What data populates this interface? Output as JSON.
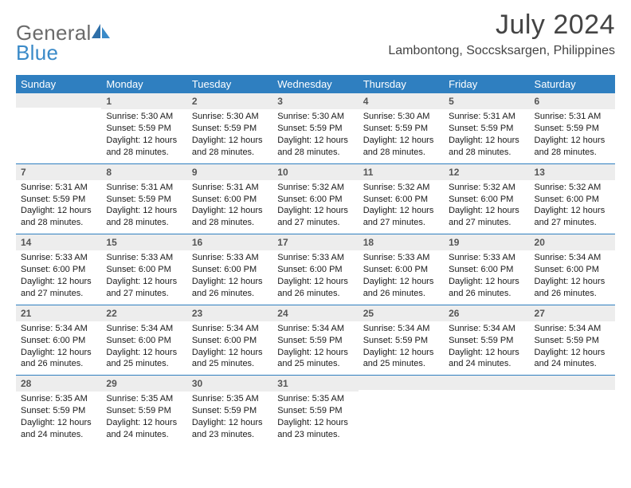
{
  "logo": {
    "text1": "General",
    "text2": "Blue"
  },
  "title": {
    "month": "July 2024",
    "location": "Lambontong, Soccsksargen, Philippines"
  },
  "headers": [
    "Sunday",
    "Monday",
    "Tuesday",
    "Wednesday",
    "Thursday",
    "Friday",
    "Saturday"
  ],
  "colors": {
    "header_bg": "#2f7fc0",
    "header_text": "#ffffff",
    "daynum_bg": "#ededed",
    "daynum_text": "#555555",
    "body_text": "#1a1a1a",
    "logo_gray": "#6b6b6b",
    "logo_blue": "#3a8ac8",
    "week_border": "#2f7fc0"
  },
  "weeks": [
    [
      {
        "day": "",
        "sunrise": "",
        "sunset": "",
        "daylight": ""
      },
      {
        "day": "1",
        "sunrise": "Sunrise: 5:30 AM",
        "sunset": "Sunset: 5:59 PM",
        "daylight": "Daylight: 12 hours and 28 minutes."
      },
      {
        "day": "2",
        "sunrise": "Sunrise: 5:30 AM",
        "sunset": "Sunset: 5:59 PM",
        "daylight": "Daylight: 12 hours and 28 minutes."
      },
      {
        "day": "3",
        "sunrise": "Sunrise: 5:30 AM",
        "sunset": "Sunset: 5:59 PM",
        "daylight": "Daylight: 12 hours and 28 minutes."
      },
      {
        "day": "4",
        "sunrise": "Sunrise: 5:30 AM",
        "sunset": "Sunset: 5:59 PM",
        "daylight": "Daylight: 12 hours and 28 minutes."
      },
      {
        "day": "5",
        "sunrise": "Sunrise: 5:31 AM",
        "sunset": "Sunset: 5:59 PM",
        "daylight": "Daylight: 12 hours and 28 minutes."
      },
      {
        "day": "6",
        "sunrise": "Sunrise: 5:31 AM",
        "sunset": "Sunset: 5:59 PM",
        "daylight": "Daylight: 12 hours and 28 minutes."
      }
    ],
    [
      {
        "day": "7",
        "sunrise": "Sunrise: 5:31 AM",
        "sunset": "Sunset: 5:59 PM",
        "daylight": "Daylight: 12 hours and 28 minutes."
      },
      {
        "day": "8",
        "sunrise": "Sunrise: 5:31 AM",
        "sunset": "Sunset: 5:59 PM",
        "daylight": "Daylight: 12 hours and 28 minutes."
      },
      {
        "day": "9",
        "sunrise": "Sunrise: 5:31 AM",
        "sunset": "Sunset: 6:00 PM",
        "daylight": "Daylight: 12 hours and 28 minutes."
      },
      {
        "day": "10",
        "sunrise": "Sunrise: 5:32 AM",
        "sunset": "Sunset: 6:00 PM",
        "daylight": "Daylight: 12 hours and 27 minutes."
      },
      {
        "day": "11",
        "sunrise": "Sunrise: 5:32 AM",
        "sunset": "Sunset: 6:00 PM",
        "daylight": "Daylight: 12 hours and 27 minutes."
      },
      {
        "day": "12",
        "sunrise": "Sunrise: 5:32 AM",
        "sunset": "Sunset: 6:00 PM",
        "daylight": "Daylight: 12 hours and 27 minutes."
      },
      {
        "day": "13",
        "sunrise": "Sunrise: 5:32 AM",
        "sunset": "Sunset: 6:00 PM",
        "daylight": "Daylight: 12 hours and 27 minutes."
      }
    ],
    [
      {
        "day": "14",
        "sunrise": "Sunrise: 5:33 AM",
        "sunset": "Sunset: 6:00 PM",
        "daylight": "Daylight: 12 hours and 27 minutes."
      },
      {
        "day": "15",
        "sunrise": "Sunrise: 5:33 AM",
        "sunset": "Sunset: 6:00 PM",
        "daylight": "Daylight: 12 hours and 27 minutes."
      },
      {
        "day": "16",
        "sunrise": "Sunrise: 5:33 AM",
        "sunset": "Sunset: 6:00 PM",
        "daylight": "Daylight: 12 hours and 26 minutes."
      },
      {
        "day": "17",
        "sunrise": "Sunrise: 5:33 AM",
        "sunset": "Sunset: 6:00 PM",
        "daylight": "Daylight: 12 hours and 26 minutes."
      },
      {
        "day": "18",
        "sunrise": "Sunrise: 5:33 AM",
        "sunset": "Sunset: 6:00 PM",
        "daylight": "Daylight: 12 hours and 26 minutes."
      },
      {
        "day": "19",
        "sunrise": "Sunrise: 5:33 AM",
        "sunset": "Sunset: 6:00 PM",
        "daylight": "Daylight: 12 hours and 26 minutes."
      },
      {
        "day": "20",
        "sunrise": "Sunrise: 5:34 AM",
        "sunset": "Sunset: 6:00 PM",
        "daylight": "Daylight: 12 hours and 26 minutes."
      }
    ],
    [
      {
        "day": "21",
        "sunrise": "Sunrise: 5:34 AM",
        "sunset": "Sunset: 6:00 PM",
        "daylight": "Daylight: 12 hours and 26 minutes."
      },
      {
        "day": "22",
        "sunrise": "Sunrise: 5:34 AM",
        "sunset": "Sunset: 6:00 PM",
        "daylight": "Daylight: 12 hours and 25 minutes."
      },
      {
        "day": "23",
        "sunrise": "Sunrise: 5:34 AM",
        "sunset": "Sunset: 6:00 PM",
        "daylight": "Daylight: 12 hours and 25 minutes."
      },
      {
        "day": "24",
        "sunrise": "Sunrise: 5:34 AM",
        "sunset": "Sunset: 5:59 PM",
        "daylight": "Daylight: 12 hours and 25 minutes."
      },
      {
        "day": "25",
        "sunrise": "Sunrise: 5:34 AM",
        "sunset": "Sunset: 5:59 PM",
        "daylight": "Daylight: 12 hours and 25 minutes."
      },
      {
        "day": "26",
        "sunrise": "Sunrise: 5:34 AM",
        "sunset": "Sunset: 5:59 PM",
        "daylight": "Daylight: 12 hours and 24 minutes."
      },
      {
        "day": "27",
        "sunrise": "Sunrise: 5:34 AM",
        "sunset": "Sunset: 5:59 PM",
        "daylight": "Daylight: 12 hours and 24 minutes."
      }
    ],
    [
      {
        "day": "28",
        "sunrise": "Sunrise: 5:35 AM",
        "sunset": "Sunset: 5:59 PM",
        "daylight": "Daylight: 12 hours and 24 minutes."
      },
      {
        "day": "29",
        "sunrise": "Sunrise: 5:35 AM",
        "sunset": "Sunset: 5:59 PM",
        "daylight": "Daylight: 12 hours and 24 minutes."
      },
      {
        "day": "30",
        "sunrise": "Sunrise: 5:35 AM",
        "sunset": "Sunset: 5:59 PM",
        "daylight": "Daylight: 12 hours and 23 minutes."
      },
      {
        "day": "31",
        "sunrise": "Sunrise: 5:35 AM",
        "sunset": "Sunset: 5:59 PM",
        "daylight": "Daylight: 12 hours and 23 minutes."
      },
      {
        "day": "",
        "sunrise": "",
        "sunset": "",
        "daylight": ""
      },
      {
        "day": "",
        "sunrise": "",
        "sunset": "",
        "daylight": ""
      },
      {
        "day": "",
        "sunrise": "",
        "sunset": "",
        "daylight": ""
      }
    ]
  ]
}
